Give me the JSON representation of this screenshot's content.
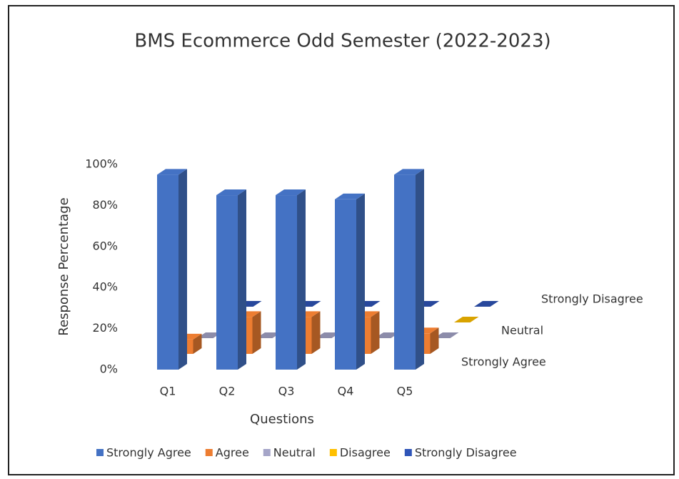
{
  "chart_data": {
    "type": "bar3d",
    "title": "BMS Ecommerce Odd Semester (2022-2023)",
    "x_label": "Questions",
    "y_label": "Response Percentage",
    "categories": [
      "Q1",
      "Q2",
      "Q3",
      "Q4",
      "Q5"
    ],
    "series": [
      {
        "name": "Strongly Agree",
        "color": "#4472c4",
        "values": [
          95,
          85,
          85,
          83,
          95
        ]
      },
      {
        "name": "Agree",
        "color": "#ed7d31",
        "values": [
          7,
          18,
          18,
          18,
          10
        ]
      },
      {
        "name": "Neutral",
        "color": "#a5a5c8",
        "values": [
          0,
          0,
          0,
          0,
          0
        ]
      },
      {
        "name": "Disagree",
        "color": "#ffc000",
        "values": [
          0,
          0,
          0,
          0,
          0
        ]
      },
      {
        "name": "Strongly Disagree",
        "color": "#2f55b8",
        "values": [
          0,
          0,
          0,
          0,
          0
        ]
      }
    ],
    "ylim": [
      0,
      100
    ],
    "yticks": [
      {
        "value": 0,
        "label": "0%"
      },
      {
        "value": 20,
        "label": "20%"
      },
      {
        "value": 40,
        "label": "40%"
      },
      {
        "value": 60,
        "label": "60%"
      },
      {
        "value": 80,
        "label": "80%"
      },
      {
        "value": 100,
        "label": "100%"
      }
    ],
    "legend": "bottom"
  }
}
